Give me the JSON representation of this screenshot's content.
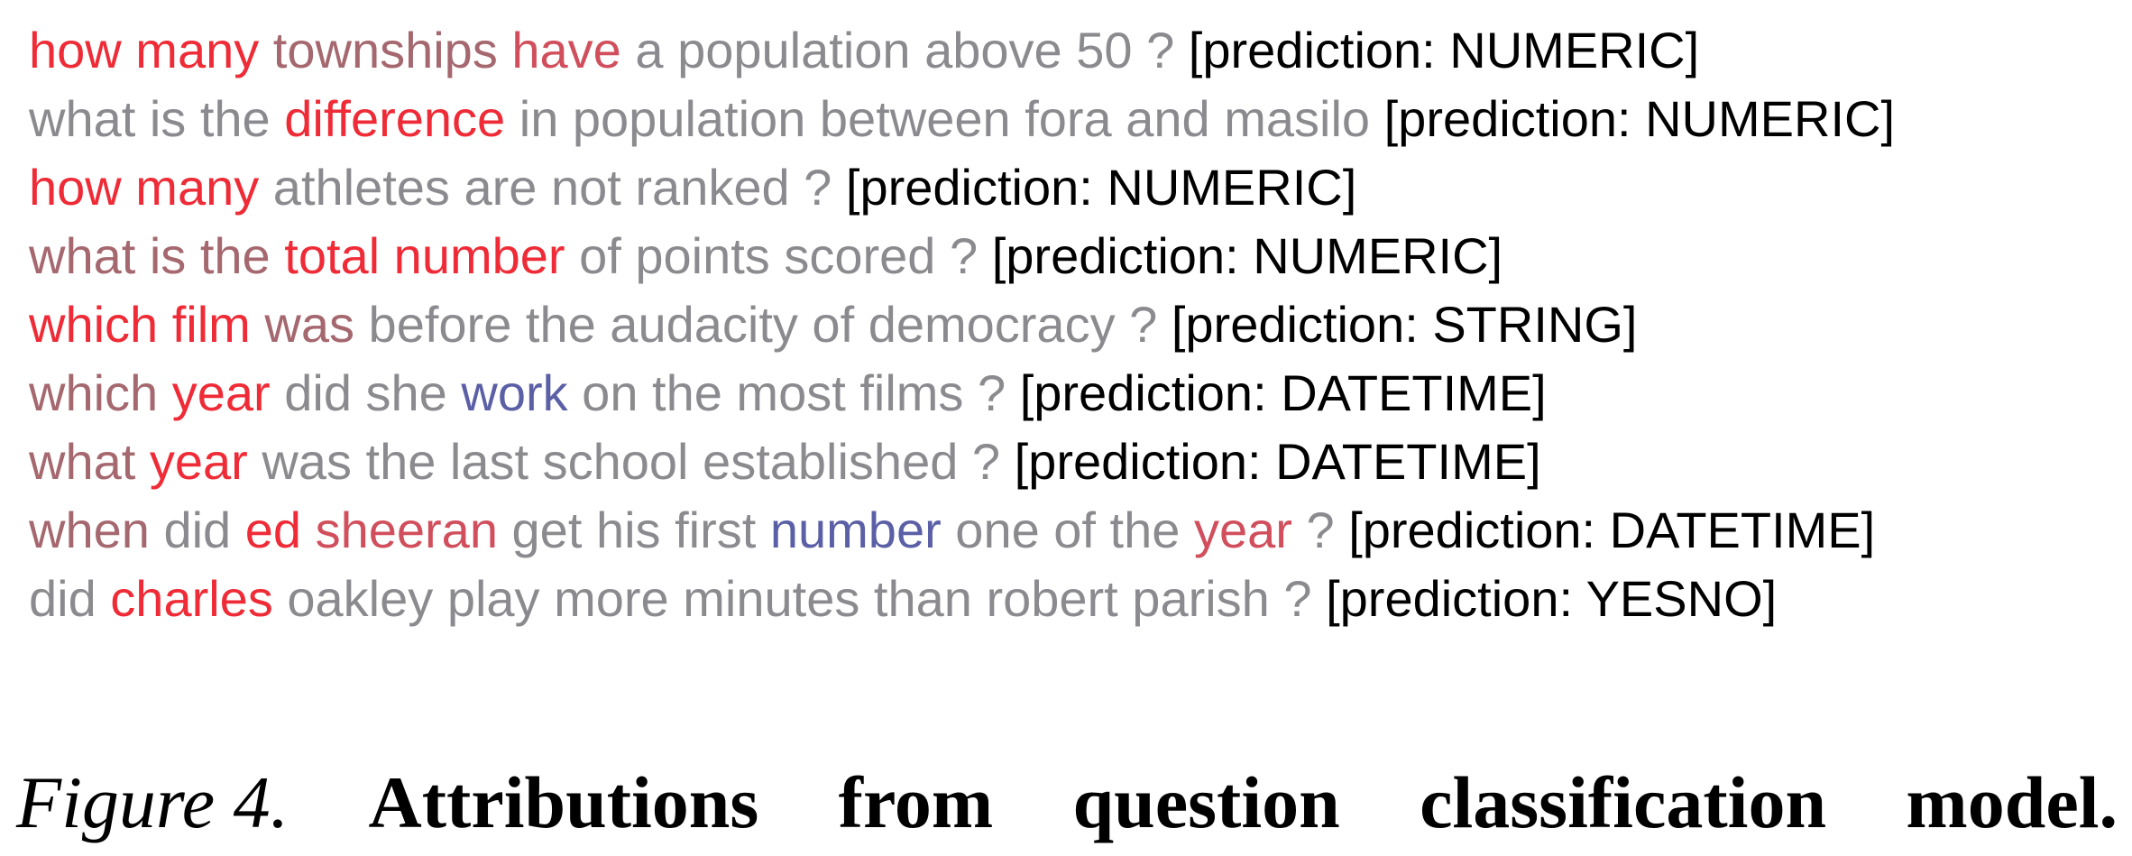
{
  "palette": {
    "strong_red": "#ee2b36",
    "mid_red": "#d14f5c",
    "muted_red": "#a5686f",
    "grey": "#8b8b8f",
    "blue": "#5b5fa6",
    "blue_grey": "#7a7898",
    "black": "#000000"
  },
  "attributions": [
    {
      "tokens": [
        {
          "text": "how many",
          "color": "#ee2b36"
        },
        {
          "text": "townships",
          "color": "#a5686f"
        },
        {
          "text": "have",
          "color": "#d14f5c"
        },
        {
          "text": "a population above 50 ?",
          "color": "#8b8b8f"
        }
      ],
      "prediction": "[prediction: NUMERIC]"
    },
    {
      "tokens": [
        {
          "text": "what is the",
          "color": "#8b8b8f"
        },
        {
          "text": "difference",
          "color": "#ee2b36"
        },
        {
          "text": "in population between fora and masilo",
          "color": "#8b8b8f"
        }
      ],
      "prediction": "[prediction: NUMERIC]"
    },
    {
      "tokens": [
        {
          "text": "how many",
          "color": "#ee2b36"
        },
        {
          "text": "athletes are not ranked ?",
          "color": "#8b8b8f"
        }
      ],
      "prediction": "[prediction: NUMERIC]"
    },
    {
      "tokens": [
        {
          "text": "what is the",
          "color": "#a5686f"
        },
        {
          "text": "total number",
          "color": "#ee2b36"
        },
        {
          "text": "of points scored ?",
          "color": "#8b8b8f"
        }
      ],
      "prediction": "[prediction: NUMERIC]"
    },
    {
      "tokens": [
        {
          "text": "which film",
          "color": "#ee2b36"
        },
        {
          "text": "was",
          "color": "#a5686f"
        },
        {
          "text": "before the audacity of democracy ?",
          "color": "#8b8b8f"
        }
      ],
      "prediction": "[prediction: STRING]"
    },
    {
      "tokens": [
        {
          "text": "which",
          "color": "#a5686f"
        },
        {
          "text": "year",
          "color": "#ee2b36"
        },
        {
          "text": "did she",
          "color": "#8b8b8f"
        },
        {
          "text": "work",
          "color": "#5b5fa6"
        },
        {
          "text": "on the most films ?",
          "color": "#8b8b8f"
        }
      ],
      "prediction": "[prediction: DATETIME]"
    },
    {
      "tokens": [
        {
          "text": "what",
          "color": "#a5686f"
        },
        {
          "text": "year",
          "color": "#ee2b36"
        },
        {
          "text": "was the last school established ?",
          "color": "#8b8b8f"
        }
      ],
      "prediction": "[prediction: DATETIME]"
    },
    {
      "tokens": [
        {
          "text": "when",
          "color": "#a5686f"
        },
        {
          "text": "did",
          "color": "#8b8b8f"
        },
        {
          "text": "ed",
          "color": "#ee2b36"
        },
        {
          "text": "sheeran",
          "color": "#d14f5c"
        },
        {
          "text": "get his first",
          "color": "#8b8b8f"
        },
        {
          "text": "number",
          "color": "#5b5fa6"
        },
        {
          "text": "one of the",
          "color": "#8b8b8f"
        },
        {
          "text": "year",
          "color": "#d14f5c"
        },
        {
          "text": "?",
          "color": "#8b8b8f"
        }
      ],
      "prediction": "[prediction: DATETIME]"
    },
    {
      "tokens": [
        {
          "text": "did",
          "color": "#8b8b8f"
        },
        {
          "text": "charles",
          "color": "#ee2b36"
        },
        {
          "text": "oakley play more minutes than robert parish ?",
          "color": "#8b8b8f"
        }
      ],
      "prediction": "[prediction: YESNO]"
    }
  ],
  "caption": {
    "label": "Figure 4.",
    "words": [
      "Attributions",
      "from",
      "question",
      "classification",
      "model."
    ]
  }
}
